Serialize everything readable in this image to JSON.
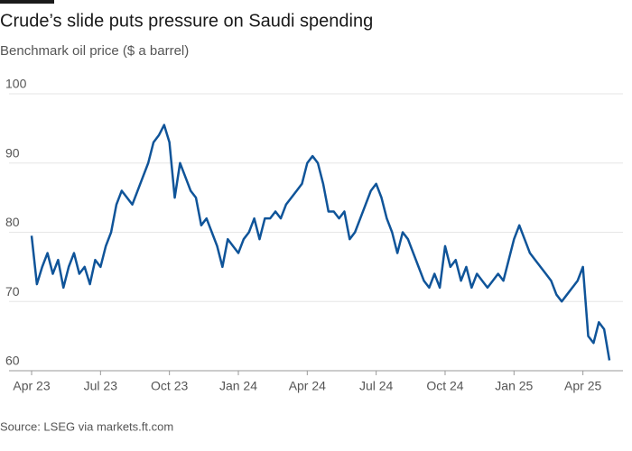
{
  "chart_data": {
    "type": "line",
    "title": "Crude’s slide puts pressure on Saudi spending",
    "subtitle": "Benchmark oil price ($ a barrel)",
    "source": "Source: LSEG via markets.ft.com",
    "categories": [
      "Apr 23",
      null,
      null,
      null,
      null,
      null,
      null,
      null,
      null,
      null,
      null,
      null,
      null,
      "Jul 23",
      null,
      null,
      null,
      null,
      null,
      null,
      null,
      null,
      null,
      null,
      null,
      null,
      "Oct 23",
      null,
      null,
      null,
      null,
      null,
      null,
      null,
      null,
      null,
      null,
      null,
      null,
      "Jan 24",
      null,
      null,
      null,
      null,
      null,
      null,
      null,
      null,
      null,
      null,
      null,
      null,
      "Apr 24",
      null,
      null,
      null,
      null,
      null,
      null,
      null,
      null,
      null,
      null,
      null,
      null,
      "Jul 24",
      null,
      null,
      null,
      null,
      null,
      null,
      null,
      null,
      null,
      null,
      null,
      null,
      "Oct 24",
      null,
      null,
      null,
      null,
      null,
      null,
      null,
      null,
      null,
      null,
      null,
      null,
      "Jan 25",
      null,
      null,
      null,
      null,
      null,
      null,
      null,
      null,
      null,
      null,
      null,
      null,
      "Apr 25",
      null,
      null,
      null,
      null,
      null
    ],
    "series": [
      {
        "name": "Benchmark oil price",
        "color": "#0f5499",
        "values": [
          79.5,
          72.5,
          75,
          77,
          74,
          76,
          72,
          75,
          77,
          74,
          75,
          72.5,
          76,
          75,
          78,
          80,
          84,
          86,
          85,
          84,
          86,
          88,
          90,
          93,
          94,
          95.5,
          93,
          85,
          90,
          88,
          86,
          85,
          81,
          82,
          80,
          78,
          75,
          79,
          78,
          77,
          79,
          80,
          82,
          79,
          82,
          82,
          83,
          82,
          84,
          85,
          86,
          87,
          90,
          91,
          90,
          87,
          83,
          83,
          82,
          83,
          79,
          80,
          82,
          84,
          86,
          87,
          85,
          82,
          80,
          77,
          80,
          79,
          77,
          75,
          73,
          72,
          74,
          72,
          78,
          75,
          76,
          73,
          75,
          72,
          74,
          73,
          72,
          73,
          74,
          73,
          76,
          79,
          81,
          79,
          77,
          76,
          75,
          74,
          73,
          71,
          70,
          71,
          72,
          73,
          75,
          65,
          64,
          67,
          66,
          61.5
        ]
      }
    ],
    "ylim": [
      60,
      100
    ],
    "yticks": [
      60,
      70,
      80,
      90,
      100
    ],
    "grid": true
  }
}
